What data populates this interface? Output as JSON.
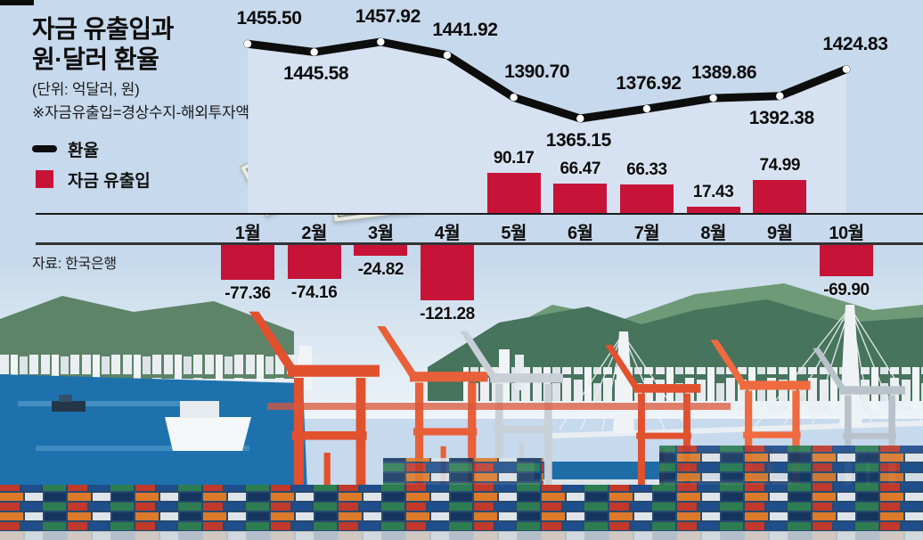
{
  "header": {
    "title_line1": "자금 유출입과",
    "title_line2": "원·달러 환율",
    "unit_note": "(단위: 억달러, 원)",
    "definition_note": "※자금유출입=경상수지-해외투자액",
    "source": "자료: 한국은행"
  },
  "legend": {
    "line_label": "환율",
    "bar_label": "자금 유출입"
  },
  "colors": {
    "bar_red": "#c81338",
    "line_black": "#0d0d0d",
    "background_blue": "#c7d9ec",
    "area_fill_blue": "#d6e2f1"
  },
  "chart_data": {
    "type": "combo",
    "categories": [
      "1월",
      "2월",
      "3월",
      "4월",
      "5월",
      "6월",
      "7월",
      "8월",
      "9월",
      "10월"
    ],
    "series": [
      {
        "name": "환율",
        "type": "line",
        "unit": "원",
        "values": [
          1455.5,
          1445.58,
          1457.92,
          1441.92,
          1390.7,
          1365.15,
          1376.92,
          1389.86,
          1392.38,
          1424.83
        ]
      },
      {
        "name": "자금 유출입",
        "type": "bar",
        "unit": "억달러",
        "values": [
          -77.36,
          -74.16,
          -24.82,
          -121.28,
          90.17,
          66.47,
          66.33,
          17.43,
          74.99,
          -69.9
        ]
      }
    ],
    "legend_position": "top-left",
    "highlight_category": "10월",
    "grid": false
  }
}
